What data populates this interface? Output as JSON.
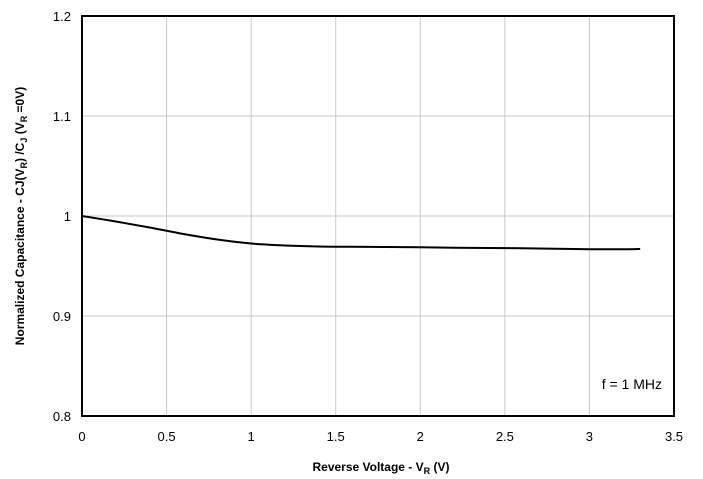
{
  "chart_data": {
    "type": "line",
    "title": "",
    "xlabel": {
      "main": "Reverse Voltage - V",
      "sub": "R",
      "suffix": " (V)"
    },
    "ylabel": {
      "p1": "Normalized Capacitance - CJ(V",
      "s1": "R",
      "p2": ") /C",
      "s2": "J",
      "p3": " (V",
      "s3": "R",
      "p4": " =0V)"
    },
    "xlim": [
      0,
      3.5
    ],
    "ylim": [
      0.8,
      1.2
    ],
    "xticks": [
      0,
      0.5,
      1,
      1.5,
      2,
      2.5,
      3,
      3.5
    ],
    "xtick_labels": [
      "0",
      "0.5",
      "1",
      "1.5",
      "2",
      "2.5",
      "3",
      "3.5"
    ],
    "yticks": [
      0.8,
      0.9,
      1.0,
      1.1,
      1.2
    ],
    "ytick_labels": [
      "0.8",
      "0.9",
      "1",
      "1.1",
      "1.2"
    ],
    "grid": true,
    "annotation": "f = 1 MHz",
    "series": [
      {
        "color": "#000000",
        "x": [
          0,
          0.2,
          0.4,
          0.6,
          0.8,
          1.0,
          1.2,
          1.4,
          1.6,
          1.8,
          2.0,
          2.2,
          2.4,
          2.6,
          2.8,
          3.0,
          3.2,
          3.3
        ],
        "y": [
          1.0,
          0.9945,
          0.9885,
          0.982,
          0.9765,
          0.9725,
          0.9705,
          0.9695,
          0.9692,
          0.969,
          0.9688,
          0.9683,
          0.968,
          0.9677,
          0.9673,
          0.9668,
          0.9668,
          0.967
        ]
      }
    ]
  }
}
